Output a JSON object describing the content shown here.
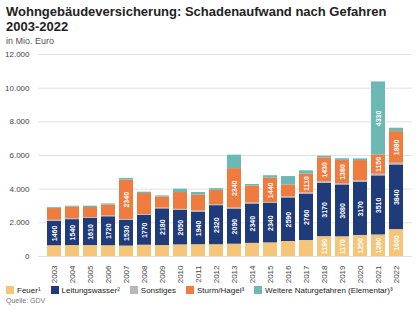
{
  "chart_data": {
    "type": "bar",
    "title": "Wohngebäudeversicherung: Schadenaufwand nach Gefahren 2003-2022",
    "subtitle": "in Mio. Euro",
    "caption": "Quelle: GDV",
    "categories": [
      "2003",
      "2004",
      "2005",
      "2006",
      "2007",
      "2008",
      "2009",
      "2010",
      "2011",
      "2012",
      "2013",
      "2014",
      "2015",
      "2016",
      "2017",
      "2018",
      "2019",
      "2020",
      "2021",
      "2022"
    ],
    "stacked": true,
    "data_labels": true,
    "grid": true,
    "legend": "bottom",
    "ylim": [
      0,
      12000
    ],
    "yticks": [
      0,
      {
        "value": 2000,
        "label": "2.000"
      },
      {
        "value": 4000,
        "label": "4.000"
      },
      {
        "value": 6000,
        "label": "6.000"
      },
      {
        "value": 8000,
        "label": "8.000"
      },
      {
        "value": 10000,
        "label": "10.000"
      },
      {
        "value": 12000,
        "label": "12.000"
      }
    ],
    "series": [
      {
        "name": "Feuer¹",
        "color": "#f5c57a",
        "values": [
          640,
          650,
          650,
          640,
          620,
          670,
          650,
          690,
          700,
          700,
          730,
          780,
          810,
          890,
          950,
          1180,
          1170,
          1250,
          1280,
          1600
        ],
        "value_labels": [
          null,
          null,
          null,
          null,
          null,
          null,
          null,
          null,
          null,
          null,
          null,
          null,
          null,
          null,
          null,
          "1180",
          "1170",
          "1250",
          "1280",
          "1600"
        ]
      },
      {
        "name": "Leitungswasser²",
        "color": "#1f3b7a",
        "values": [
          1460,
          1540,
          1610,
          1720,
          1530,
          1770,
          2180,
          2050,
          1940,
          2320,
          2090,
          2340,
          2340,
          2590,
          2760,
          3170,
          3080,
          3170,
          3510,
          3840
        ],
        "value_labels": [
          "1460",
          "1540",
          "1610",
          "1720",
          "1530",
          "1770",
          "2180",
          "2050",
          "1940",
          "2320",
          "2090",
          "2340",
          "2340",
          "2590",
          "2760",
          "3170",
          "3080",
          "3170",
          "3510",
          "3840"
        ]
      },
      {
        "name": "Sonstiges",
        "color": "#b8b8b8",
        "values": [
          50,
          50,
          50,
          50,
          50,
          50,
          50,
          60,
          60,
          60,
          60,
          60,
          60,
          70,
          70,
          80,
          80,
          80,
          100,
          100
        ],
        "value_labels": [
          null,
          null,
          null,
          null,
          null,
          null,
          null,
          null,
          null,
          null,
          null,
          null,
          null,
          null,
          null,
          null,
          null,
          null,
          null,
          null
        ]
      },
      {
        "name": "Sturm/Hagel³",
        "color": "#f07b3f",
        "values": [
          700,
          700,
          600,
          650,
          2340,
          1250,
          650,
          1000,
          950,
          850,
          2340,
          1000,
          1440,
          700,
          1110,
          1430,
          1380,
          1200,
          1150,
          1880
        ],
        "value_labels": [
          null,
          null,
          null,
          null,
          "2340",
          null,
          null,
          null,
          null,
          null,
          "2340",
          null,
          "1440",
          null,
          "1110",
          "1430",
          "1380",
          null,
          "1150",
          "1880"
        ]
      },
      {
        "name": "Weitere Naturgefahren (Elementar)³",
        "color": "#6cb8b4",
        "values": [
          50,
          50,
          80,
          60,
          100,
          80,
          70,
          200,
          150,
          100,
          800,
          100,
          150,
          500,
          200,
          100,
          100,
          100,
          4330,
          200
        ],
        "value_labels": [
          null,
          null,
          null,
          null,
          null,
          null,
          null,
          null,
          null,
          null,
          null,
          null,
          null,
          null,
          null,
          null,
          null,
          null,
          "4330",
          null
        ]
      }
    ]
  }
}
